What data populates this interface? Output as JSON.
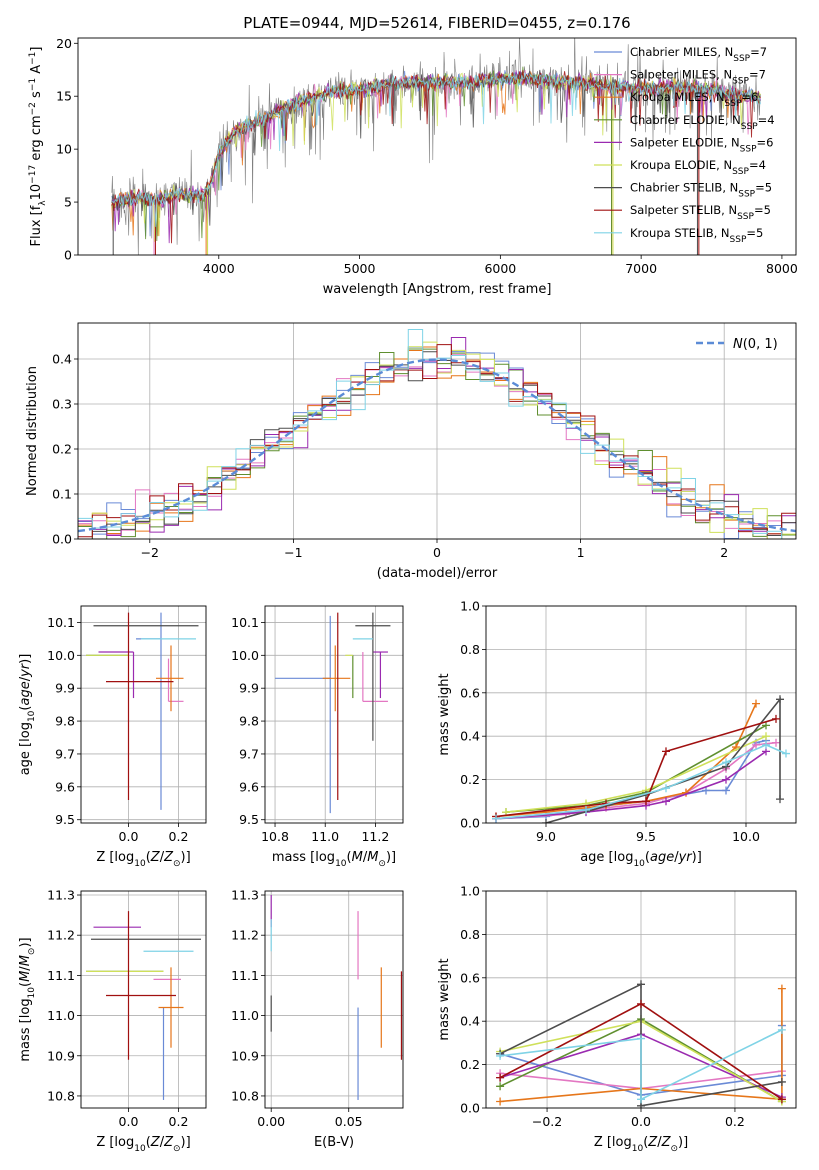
{
  "title": "PLATE=0944, MJD=52614, FIBERID=0455, z=0.176",
  "colors": {
    "chabrier_miles": "#6a8ad6",
    "salpeter_miles": "#e377c2",
    "kroupa_miles": "#e6761a",
    "chabrier_elodie": "#5f8f2f",
    "salpeter_elodie": "#9a2ab0",
    "kroupa_elodie": "#cfe05a",
    "chabrier_stelib": "#4d4d4d",
    "salpeter_stelib": "#a01010",
    "kroupa_stelib": "#7fd3e6",
    "spectrum": "#7f7f7f",
    "normal": "#5b8bd6",
    "grid": "#b0b0b0"
  },
  "chart_data": [
    {
      "id": "spectrum",
      "type": "line",
      "xlabel": "wavelength [Angstrom, rest frame]",
      "ylabel": "Flux [f_λ 10^-17 erg cm^-2 s^-1 A^-1]",
      "xlim": [
        3000,
        8100
      ],
      "ylim": [
        0,
        20.5
      ],
      "xticks": [
        4000,
        5000,
        6000,
        7000,
        8000
      ],
      "yticks": [
        0,
        5,
        10,
        15,
        20
      ],
      "grid": false,
      "legend_position": "upper-right",
      "continuum": {
        "x": [
          3240,
          3400,
          3600,
          3700,
          3800,
          3900,
          3950,
          4000,
          4100,
          4200,
          4300,
          4400,
          4500,
          4600,
          4700,
          4800,
          5000,
          5200,
          5400,
          5600,
          5800,
          6000,
          6200,
          6400,
          6600,
          6800,
          7000,
          7200,
          7400,
          7600,
          7850
        ],
        "y": [
          4.9,
          5.4,
          5.2,
          5.7,
          5.6,
          5.6,
          7.0,
          9.5,
          11.5,
          12.2,
          12.8,
          13.4,
          14.0,
          14.6,
          15.0,
          15.4,
          15.6,
          16.1,
          16.3,
          16.3,
          16.3,
          16.6,
          16.7,
          16.3,
          16.2,
          15.9,
          15.7,
          15.9,
          15.8,
          15.3,
          14.9
        ]
      },
      "legend": [
        {
          "text": "Chabrier MILES, N",
          "sub": "SSP",
          "n": "=7",
          "color_key": "chabrier_miles"
        },
        {
          "text": "Salpeter MILES, N",
          "sub": "SSP",
          "n": "=7",
          "color_key": "salpeter_miles"
        },
        {
          "text": "Kroupa MILES, N",
          "sub": "SSP",
          "n": "=6",
          "color_key": "kroupa_miles"
        },
        {
          "text": "Chabrier ELODIE, N",
          "sub": "SSP",
          "n": "=4",
          "color_key": "chabrier_elodie"
        },
        {
          "text": "Salpeter ELODIE, N",
          "sub": "SSP",
          "n": "=6",
          "color_key": "salpeter_elodie"
        },
        {
          "text": "Kroupa ELODIE, N",
          "sub": "SSP",
          "n": "=4",
          "color_key": "kroupa_elodie"
        },
        {
          "text": "Chabrier STELIB, N",
          "sub": "SSP",
          "n": "=5",
          "color_key": "chabrier_stelib"
        },
        {
          "text": "Salpeter STELIB, N",
          "sub": "SSP",
          "n": "=5",
          "color_key": "salpeter_stelib"
        },
        {
          "text": "Kroupa STELIB, N",
          "sub": "SSP",
          "n": "=5",
          "color_key": "kroupa_stelib"
        }
      ]
    },
    {
      "id": "residuals",
      "type": "histogram",
      "xlabel": "(data-model)/error",
      "ylabel": "Normed distribution",
      "xlim": [
        -2.5,
        2.5
      ],
      "ylim": [
        0,
        0.48
      ],
      "xticks": [
        -2,
        -1,
        0,
        1,
        2
      ],
      "yticks": [
        0.0,
        0.1,
        0.2,
        0.3,
        0.4
      ],
      "grid": true,
      "bin_width": 0.1,
      "curve_label": "N(0,1)",
      "legend_position": "upper-right"
    },
    {
      "id": "age_vs_Z",
      "type": "errorbar",
      "xlabel": "Z [log10(Z/Z⊙)]",
      "ylabel": "age [log10(age/yr)]",
      "xlim": [
        -0.19,
        0.31
      ],
      "ylim": [
        9.49,
        10.15
      ],
      "xticks": [
        0.0,
        0.2
      ],
      "yticks": [
        9.5,
        9.6,
        9.7,
        9.8,
        9.9,
        10.0,
        10.1
      ],
      "grid": true,
      "points": [
        {
          "x": 0.13,
          "xerr": [
            0.1,
            0.0
          ],
          "y": 10.05,
          "yerr": [
            0.52,
            0.08
          ],
          "color_key": "chabrier_miles"
        },
        {
          "x": 0.16,
          "xerr": [
            0.0,
            0.06
          ],
          "y": 9.86,
          "yerr": [
            0.0,
            0.13
          ],
          "color_key": "salpeter_miles"
        },
        {
          "x": 0.17,
          "xerr": [
            0.06,
            0.05
          ],
          "y": 9.93,
          "yerr": [
            0.1,
            0.1
          ],
          "color_key": "kroupa_miles"
        },
        {
          "x": 0.0,
          "xerr": [
            0.17,
            0.0
          ],
          "y": 10.0,
          "yerr": [
            0.0,
            0.0
          ],
          "color_key": "chabrier_elodie"
        },
        {
          "x": 0.02,
          "xerr": [
            0.14,
            0.0
          ],
          "y": 10.01,
          "yerr": [
            0.14,
            0.0
          ],
          "color_key": "salpeter_elodie"
        },
        {
          "x": 0.0,
          "xerr": [
            0.17,
            0.0
          ],
          "y": 10.0,
          "yerr": [
            0.0,
            0.0
          ],
          "color_key": "kroupa_elodie"
        },
        {
          "x": 0.16,
          "xerr": [
            0.3,
            0.12
          ],
          "y": 10.09,
          "yerr": [
            0.0,
            0.0
          ],
          "color_key": "chabrier_stelib"
        },
        {
          "x": 0.0,
          "xerr": [
            0.09,
            0.18
          ],
          "y": 9.92,
          "yerr": [
            0.36,
            0.21
          ],
          "color_key": "salpeter_stelib"
        },
        {
          "x": 0.13,
          "xerr": [
            0.08,
            0.14
          ],
          "y": 10.05,
          "yerr": [
            0.0,
            0.0
          ],
          "color_key": "kroupa_stelib"
        }
      ]
    },
    {
      "id": "age_vs_mass",
      "type": "errorbar",
      "xlabel": "mass [log10(M/M⊙)]",
      "ylabel": "",
      "xlim": [
        10.76,
        11.31
      ],
      "ylim": [
        9.49,
        10.15
      ],
      "xticks": [
        10.8,
        11.0,
        11.2
      ],
      "yticks": [
        9.5,
        9.6,
        9.7,
        9.8,
        9.9,
        10.0,
        10.1
      ],
      "grid": true,
      "points": [
        {
          "x": 11.02,
          "xerr": [
            0.22,
            0.0
          ],
          "y": 9.93,
          "yerr": [
            0.41,
            0.19
          ],
          "color_key": "chabrier_miles"
        },
        {
          "x": 11.15,
          "xerr": [
            0.0,
            0.1
          ],
          "y": 9.86,
          "yerr": [
            0.0,
            0.15
          ],
          "color_key": "salpeter_miles"
        },
        {
          "x": 11.04,
          "xerr": [
            0.05,
            0.06
          ],
          "y": 9.93,
          "yerr": [
            0.1,
            0.1
          ],
          "color_key": "kroupa_miles"
        },
        {
          "x": 11.11,
          "xerr": [
            0.0,
            0.0
          ],
          "y": 10.0,
          "yerr": [
            0.13,
            0.0
          ],
          "color_key": "chabrier_elodie"
        },
        {
          "x": 11.22,
          "xerr": [
            0.03,
            0.03
          ],
          "y": 10.01,
          "yerr": [
            0.14,
            0.0
          ],
          "color_key": "salpeter_elodie"
        },
        {
          "x": 11.11,
          "xerr": [
            0.03,
            0.0
          ],
          "y": 10.0,
          "yerr": [
            0.0,
            0.0
          ],
          "color_key": "kroupa_elodie"
        },
        {
          "x": 11.19,
          "xerr": [
            0.07,
            0.07
          ],
          "y": 10.09,
          "yerr": [
            0.35,
            0.04
          ],
          "color_key": "chabrier_stelib"
        },
        {
          "x": 11.05,
          "xerr": [
            0.0,
            0.0
          ],
          "y": 9.92,
          "yerr": [
            0.36,
            0.21
          ],
          "color_key": "salpeter_stelib"
        },
        {
          "x": 11.16,
          "xerr": [
            0.05,
            0.03
          ],
          "y": 10.05,
          "yerr": [
            0.0,
            0.0
          ],
          "color_key": "kroupa_stelib"
        }
      ]
    },
    {
      "id": "weight_vs_age",
      "type": "line",
      "xlabel": "age [log10(age/yr)]",
      "ylabel": "mass weight",
      "xlim": [
        8.7,
        10.25
      ],
      "ylim": [
        0,
        1
      ],
      "xticks": [
        9.0,
        9.5,
        10.0
      ],
      "yticks": [
        0.0,
        0.2,
        0.4,
        0.6,
        0.8,
        1.0
      ],
      "grid": true,
      "series": [
        {
          "color_key": "chabrier_miles",
          "x": [
            8.75,
            9.0,
            9.3,
            9.5,
            9.8,
            9.9,
            10.05,
            10.1
          ],
          "y": [
            0.02,
            0.03,
            0.08,
            0.1,
            0.15,
            0.15,
            0.37,
            0.38
          ]
        },
        {
          "color_key": "salpeter_miles",
          "x": [
            8.75,
            9.1,
            9.3,
            9.5,
            9.7,
            9.9,
            10.05,
            10.15
          ],
          "y": [
            0.02,
            0.04,
            0.07,
            0.09,
            0.14,
            0.25,
            0.36,
            0.37
          ]
        },
        {
          "color_key": "kroupa_miles",
          "x": [
            8.75,
            9.0,
            9.3,
            9.5,
            9.7,
            9.95,
            10.05
          ],
          "y": [
            0.03,
            0.05,
            0.08,
            0.1,
            0.14,
            0.35,
            0.55
          ]
        },
        {
          "color_key": "chabrier_elodie",
          "x": [
            8.8,
            9.2,
            9.5,
            10.1
          ],
          "y": [
            0.05,
            0.08,
            0.14,
            0.45
          ]
        },
        {
          "color_key": "salpeter_elodie",
          "x": [
            8.75,
            9.2,
            9.5,
            9.6,
            9.9,
            10.1
          ],
          "y": [
            0.02,
            0.05,
            0.08,
            0.1,
            0.2,
            0.33
          ]
        },
        {
          "color_key": "kroupa_elodie",
          "x": [
            8.8,
            9.2,
            9.5,
            10.1
          ],
          "y": [
            0.05,
            0.09,
            0.15,
            0.4
          ]
        },
        {
          "color_key": "chabrier_stelib",
          "x": [
            9.0,
            9.5,
            9.9,
            10.17,
            10.17
          ],
          "y": [
            0.0,
            0.13,
            0.26,
            0.57,
            0.11
          ]
        },
        {
          "color_key": "salpeter_stelib",
          "x": [
            8.75,
            9.3,
            9.5,
            9.6,
            10.15
          ],
          "y": [
            0.03,
            0.09,
            0.1,
            0.33,
            0.48
          ]
        },
        {
          "color_key": "kroupa_stelib",
          "x": [
            8.75,
            9.2,
            9.6,
            9.9,
            10.1,
            10.2
          ],
          "y": [
            0.02,
            0.06,
            0.16,
            0.28,
            0.36,
            0.32
          ]
        }
      ]
    },
    {
      "id": "mass_vs_Z",
      "type": "errorbar",
      "xlabel": "Z [log10(Z/Z⊙)]",
      "ylabel": "mass [log10(M/M⊙)]",
      "xlim": [
        -0.19,
        0.31
      ],
      "ylim": [
        10.77,
        11.31
      ],
      "xticks": [
        0.0,
        0.2
      ],
      "yticks": [
        10.8,
        10.9,
        11.0,
        11.1,
        11.2,
        11.3
      ],
      "grid": true,
      "points": [
        {
          "x": 0.14,
          "xerr": [
            0.0,
            0.0
          ],
          "y": 11.02,
          "yerr": [
            0.23,
            0.0
          ],
          "color_key": "chabrier_miles"
        },
        {
          "x": 0.17,
          "xerr": [
            0.07,
            0.04
          ],
          "y": 11.09,
          "yerr": [
            0.0,
            0.0
          ],
          "color_key": "salpeter_miles"
        },
        {
          "x": 0.17,
          "xerr": [
            0.05,
            0.05
          ],
          "y": 11.02,
          "yerr": [
            0.1,
            0.1
          ],
          "color_key": "kroupa_miles"
        },
        {
          "x": 0.0,
          "xerr": [
            0.17,
            0.14
          ],
          "y": 11.11,
          "yerr": [
            0.0,
            0.0
          ],
          "color_key": "chabrier_elodie"
        },
        {
          "x": 0.0,
          "xerr": [
            0.14,
            0.05
          ],
          "y": 11.22,
          "yerr": [
            0.0,
            0.0
          ],
          "color_key": "salpeter_elodie"
        },
        {
          "x": 0.0,
          "xerr": [
            0.17,
            0.14
          ],
          "y": 11.11,
          "yerr": [
            0.0,
            0.0
          ],
          "color_key": "kroupa_elodie"
        },
        {
          "x": 0.0,
          "xerr": [
            0.15,
            0.29
          ],
          "y": 11.19,
          "yerr": [
            0.0,
            0.0
          ],
          "color_key": "chabrier_stelib"
        },
        {
          "x": 0.0,
          "xerr": [
            0.09,
            0.19
          ],
          "y": 11.05,
          "yerr": [
            0.16,
            0.21
          ],
          "color_key": "salpeter_stelib"
        },
        {
          "x": 0.13,
          "xerr": [
            0.07,
            0.13
          ],
          "y": 11.16,
          "yerr": [
            0.0,
            0.0
          ],
          "color_key": "kroupa_stelib"
        }
      ]
    },
    {
      "id": "mass_vs_ebv",
      "type": "errorbar",
      "xlabel": "E(B-V)",
      "ylabel": "",
      "xlim": [
        -0.004,
        0.085
      ],
      "ylim": [
        10.77,
        11.31
      ],
      "xticks": [
        0.0,
        0.05
      ],
      "yticks": [
        10.8,
        10.9,
        11.0,
        11.1,
        11.2,
        11.3
      ],
      "grid": true,
      "points": [
        {
          "x": 0.056,
          "y": 11.02,
          "yerr": [
            0.23,
            0.0
          ],
          "color_key": "chabrier_miles"
        },
        {
          "x": 0.056,
          "y": 11.09,
          "yerr": [
            0.0,
            0.17
          ],
          "color_key": "salpeter_miles"
        },
        {
          "x": 0.071,
          "y": 11.02,
          "yerr": [
            0.1,
            0.1
          ],
          "color_key": "kroupa_miles"
        },
        {
          "x": 0.0,
          "y": 11.11,
          "yerr": [
            0.0,
            0.0
          ],
          "color_key": "chabrier_elodie"
        },
        {
          "x": 0.0,
          "y": 11.22,
          "yerr": [
            0.0,
            0.08
          ],
          "color_key": "salpeter_elodie"
        },
        {
          "x": 0.0,
          "y": 11.11,
          "yerr": [
            0.0,
            0.0
          ],
          "color_key": "kroupa_elodie"
        },
        {
          "x": 0.0,
          "y": 11.01,
          "yerr": [
            0.05,
            0.04
          ],
          "color_key": "chabrier_stelib"
        },
        {
          "x": 0.084,
          "y": 11.0,
          "yerr": [
            0.11,
            0.11
          ],
          "color_key": "salpeter_stelib"
        },
        {
          "x": 0.0,
          "y": 11.16,
          "yerr": [
            0.0,
            0.08
          ],
          "color_key": "kroupa_stelib"
        }
      ]
    },
    {
      "id": "weight_vs_Z",
      "type": "line",
      "xlabel": "Z [log10(Z/Z⊙)]",
      "ylabel": "mass weight",
      "xlim": [
        -0.33,
        0.33
      ],
      "ylim": [
        0,
        1
      ],
      "xticks": [
        -0.2,
        0.0,
        0.2
      ],
      "yticks": [
        0.0,
        0.2,
        0.4,
        0.6,
        0.8,
        1.0
      ],
      "grid": true,
      "series": [
        {
          "color_key": "chabrier_miles",
          "x": [
            -0.3,
            0.0,
            0.3,
            0.3
          ],
          "y": [
            0.25,
            0.06,
            0.15,
            0.38
          ]
        },
        {
          "color_key": "salpeter_miles",
          "x": [
            -0.3,
            0.0,
            0.3
          ],
          "y": [
            0.16,
            0.09,
            0.17
          ]
        },
        {
          "color_key": "kroupa_miles",
          "x": [
            -0.3,
            0.0,
            0.3,
            0.3
          ],
          "y": [
            0.03,
            0.09,
            0.04,
            0.55
          ]
        },
        {
          "color_key": "chabrier_elodie",
          "x": [
            -0.3,
            0.0,
            0.3
          ],
          "y": [
            0.1,
            0.41,
            0.03
          ]
        },
        {
          "color_key": "salpeter_elodie",
          "x": [
            -0.3,
            0.0,
            0.3
          ],
          "y": [
            0.14,
            0.34,
            0.05
          ]
        },
        {
          "color_key": "kroupa_elodie",
          "x": [
            -0.3,
            0.0,
            0.3
          ],
          "y": [
            0.26,
            0.4,
            0.03
          ]
        },
        {
          "color_key": "chabrier_stelib",
          "x": [
            -0.3,
            0.0,
            0.0,
            0.3
          ],
          "y": [
            0.25,
            0.57,
            0.01,
            0.12
          ]
        },
        {
          "color_key": "salpeter_stelib",
          "x": [
            -0.3,
            0.0,
            0.3
          ],
          "y": [
            0.14,
            0.48,
            0.04
          ]
        },
        {
          "color_key": "kroupa_stelib",
          "x": [
            -0.3,
            0.0,
            0.0,
            0.3
          ],
          "y": [
            0.24,
            0.32,
            0.04,
            0.36
          ]
        }
      ]
    }
  ]
}
